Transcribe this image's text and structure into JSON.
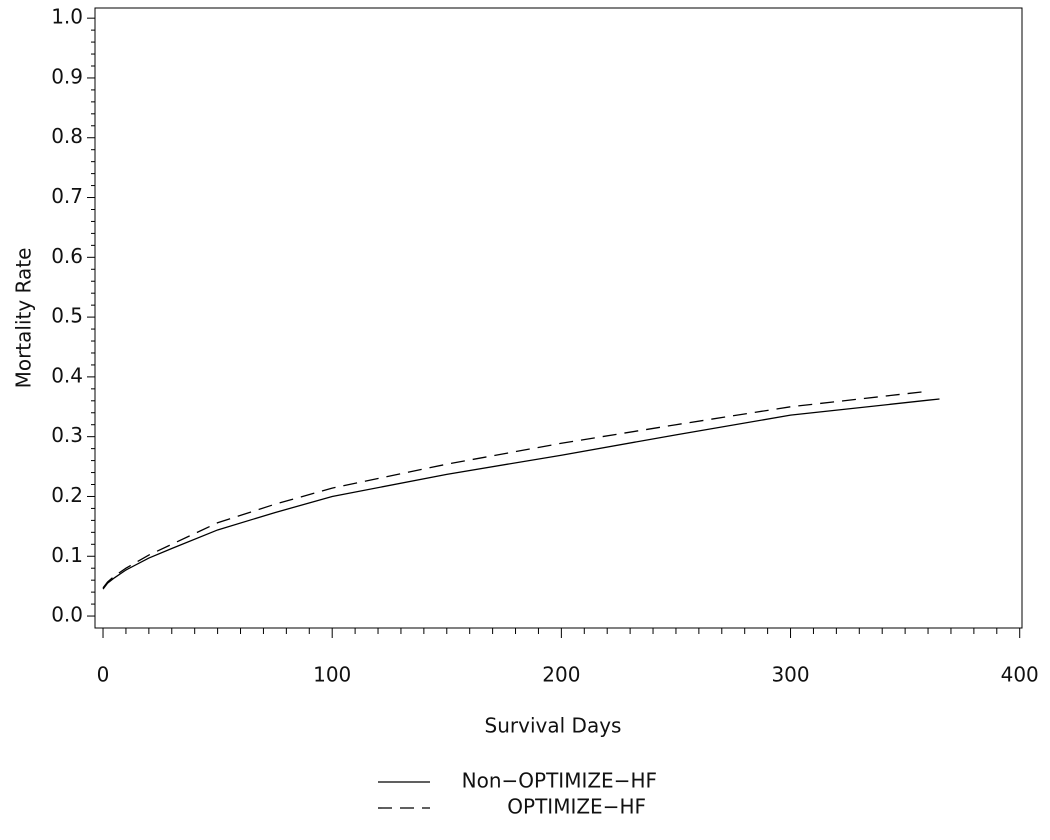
{
  "chart_data": {
    "type": "line",
    "x_label": "Survival Days",
    "y_label": "Mortality Rate",
    "x": [
      0,
      2,
      5,
      10,
      20,
      30,
      50,
      75,
      100,
      150,
      200,
      250,
      300,
      360,
      365
    ],
    "series": [
      {
        "name": "Non−OPTIMIZE−HF",
        "color": "#000000",
        "line_style": "solid",
        "values": [
          0.045,
          0.055,
          0.064,
          0.077,
          0.097,
          0.113,
          0.144,
          0.173,
          0.2,
          0.237,
          0.269,
          0.303,
          0.336,
          0.361,
          0.363
        ]
      },
      {
        "name": "OPTIMIZE−HF",
        "color": "#000000",
        "line_style": "dashed",
        "values": [
          0.047,
          0.057,
          0.067,
          0.08,
          0.102,
          0.12,
          0.156,
          0.187,
          0.214,
          0.254,
          0.289,
          0.32,
          0.35,
          0.376,
          null
        ]
      }
    ],
    "xlim": [
      -3.5,
      401
    ],
    "ylim": [
      -0.02,
      1.017
    ],
    "xticks": [
      0,
      100,
      200,
      300,
      400
    ],
    "yticks": [
      {
        "value": 0,
        "label": "0.0"
      },
      0.1,
      0.2,
      0.3,
      0.4,
      0.5,
      0.6,
      0.7,
      0.8,
      0.9,
      {
        "value": 1,
        "label": "1.0"
      }
    ],
    "x_minor_ticks": [
      10,
      20,
      30,
      40,
      50,
      60,
      70,
      80,
      90,
      110,
      120,
      130,
      140,
      150,
      160,
      170,
      180,
      190,
      210,
      220,
      230,
      240,
      250,
      260,
      270,
      280,
      290,
      310,
      320,
      330,
      340,
      350,
      360,
      370,
      380,
      390
    ],
    "y_minor_ticks": [
      0.02,
      0.04,
      0.06,
      0.08,
      0.12,
      0.14,
      0.16,
      0.18,
      0.22,
      0.24,
      0.26,
      0.28,
      0.32,
      0.34,
      0.36,
      0.38,
      0.42,
      0.44,
      0.46,
      0.48,
      0.52,
      0.54,
      0.56,
      0.58,
      0.62,
      0.64,
      0.66,
      0.68,
      0.72,
      0.74,
      0.76,
      0.78,
      0.82,
      0.84,
      0.86,
      0.88,
      0.92,
      0.94,
      0.96,
      0.98
    ],
    "grid": false
  }
}
